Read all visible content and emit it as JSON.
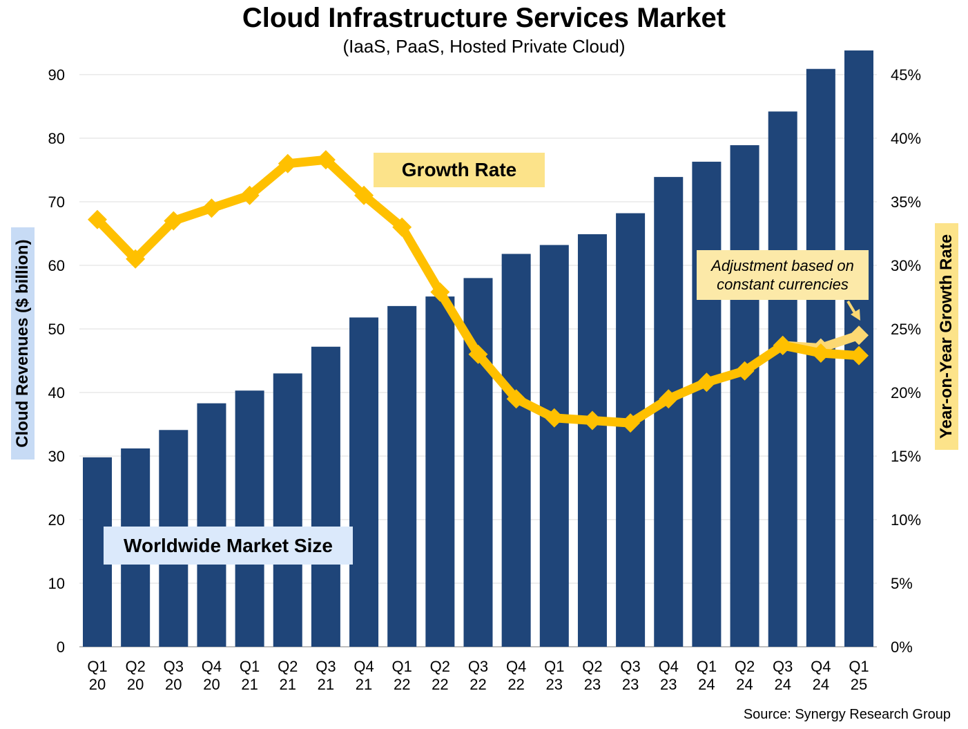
{
  "chart_data": {
    "type": "bar",
    "title": "Cloud Infrastructure Services Market",
    "subtitle": "(IaaS, PaaS, Hosted Private Cloud)",
    "categories": [
      "Q1 20",
      "Q2 20",
      "Q3 20",
      "Q4 20",
      "Q1 21",
      "Q2 21",
      "Q3 21",
      "Q4 21",
      "Q1 22",
      "Q2 22",
      "Q3 22",
      "Q4 22",
      "Q1 23",
      "Q2 23",
      "Q3 23",
      "Q4 23",
      "Q1 24",
      "Q2 24",
      "Q3 24",
      "Q4 24",
      "Q1 25"
    ],
    "category_labels": [
      [
        "Q1",
        "20"
      ],
      [
        "Q2",
        "20"
      ],
      [
        "Q3",
        "20"
      ],
      [
        "Q4",
        "20"
      ],
      [
        "Q1",
        "21"
      ],
      [
        "Q2",
        "21"
      ],
      [
        "Q3",
        "21"
      ],
      [
        "Q4",
        "21"
      ],
      [
        "Q1",
        "22"
      ],
      [
        "Q2",
        "22"
      ],
      [
        "Q3",
        "22"
      ],
      [
        "Q4",
        "22"
      ],
      [
        "Q1",
        "23"
      ],
      [
        "Q2",
        "23"
      ],
      [
        "Q3",
        "23"
      ],
      [
        "Q4",
        "23"
      ],
      [
        "Q1",
        "24"
      ],
      [
        "Q2",
        "24"
      ],
      [
        "Q3",
        "24"
      ],
      [
        "Q4",
        "24"
      ],
      [
        "Q1",
        "25"
      ]
    ],
    "series": [
      {
        "name": "Worldwide Market Size",
        "type": "bar",
        "axis": "left",
        "color": "#1f4579",
        "values": [
          29.8,
          31.2,
          34.1,
          38.3,
          40.3,
          43.0,
          47.2,
          51.8,
          53.6,
          55.1,
          58.0,
          61.8,
          63.2,
          64.9,
          68.2,
          73.9,
          76.3,
          78.9,
          84.2,
          90.9,
          93.8
        ]
      },
      {
        "name": "Growth Rate",
        "type": "line",
        "axis": "right",
        "color": "#ffc000",
        "values": [
          33.6,
          30.5,
          33.5,
          34.5,
          35.5,
          38.0,
          38.3,
          35.5,
          33.0,
          27.9,
          23.0,
          19.5,
          18.0,
          17.8,
          17.6,
          19.5,
          20.8,
          21.7,
          23.7,
          23.1,
          22.9
        ]
      },
      {
        "name": "Adjustment based on constant currencies",
        "type": "line",
        "axis": "right",
        "color": "#fcd873",
        "x": [
          "Q3 24",
          "Q4 24",
          "Q1 25"
        ],
        "values": [
          23.7,
          23.5,
          24.5
        ]
      }
    ],
    "ylabel": "Cloud Revenues ($ billion)",
    "ylabel_right": "Year-on-Year Growth Rate",
    "ylim": [
      0,
      90
    ],
    "ylim_right": [
      0,
      45
    ],
    "yticks": [
      "0",
      "10",
      "20",
      "30",
      "40",
      "50",
      "60",
      "70",
      "80",
      "90"
    ],
    "yticks_right": [
      "0%",
      "5%",
      "10%",
      "15%",
      "20%",
      "25%",
      "30%",
      "35%",
      "40%",
      "45%"
    ],
    "grid": true,
    "annotations": {
      "growth_label": "Growth Rate",
      "market_label": "Worldwide Market Size",
      "adjustment_line1": "Adjustment based on",
      "adjustment_line2": "constant currencies"
    },
    "source": "Source: Synergy Research Group"
  }
}
